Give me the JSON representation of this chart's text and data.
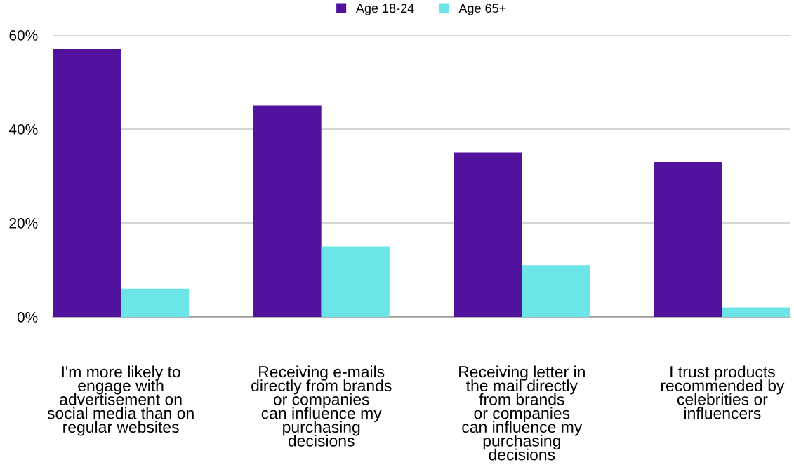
{
  "chart_data": {
    "type": "bar",
    "categories": [
      "I'm more likely to\nengage with\nadvertisement on\nsocial media than on\nregular websites",
      "Receiving e-mails\ndirectly from brands\nor companies\ncan influence my\npurchasing\ndecisions",
      "Receiving letter in\nthe mail directly\nfrom brands\nor companies\ncan influence my\npurchasing\ndecisions",
      "I trust products\nrecommended by\ncelebrities or\ninfluencers"
    ],
    "series": [
      {
        "name": "Age 18-24",
        "color": "#52129e",
        "values": [
          57,
          45,
          35,
          33
        ]
      },
      {
        "name": "Age 65+",
        "color": "#6ce5e8",
        "values": [
          6,
          15,
          11,
          2
        ]
      }
    ],
    "ylim": [
      0,
      60
    ],
    "yticks": [
      {
        "value": 0,
        "label": "0%"
      },
      {
        "value": 20,
        "label": "20%"
      },
      {
        "value": 40,
        "label": "40%"
      },
      {
        "value": 60,
        "label": "60%"
      }
    ],
    "grid": "y",
    "legend": "top"
  }
}
